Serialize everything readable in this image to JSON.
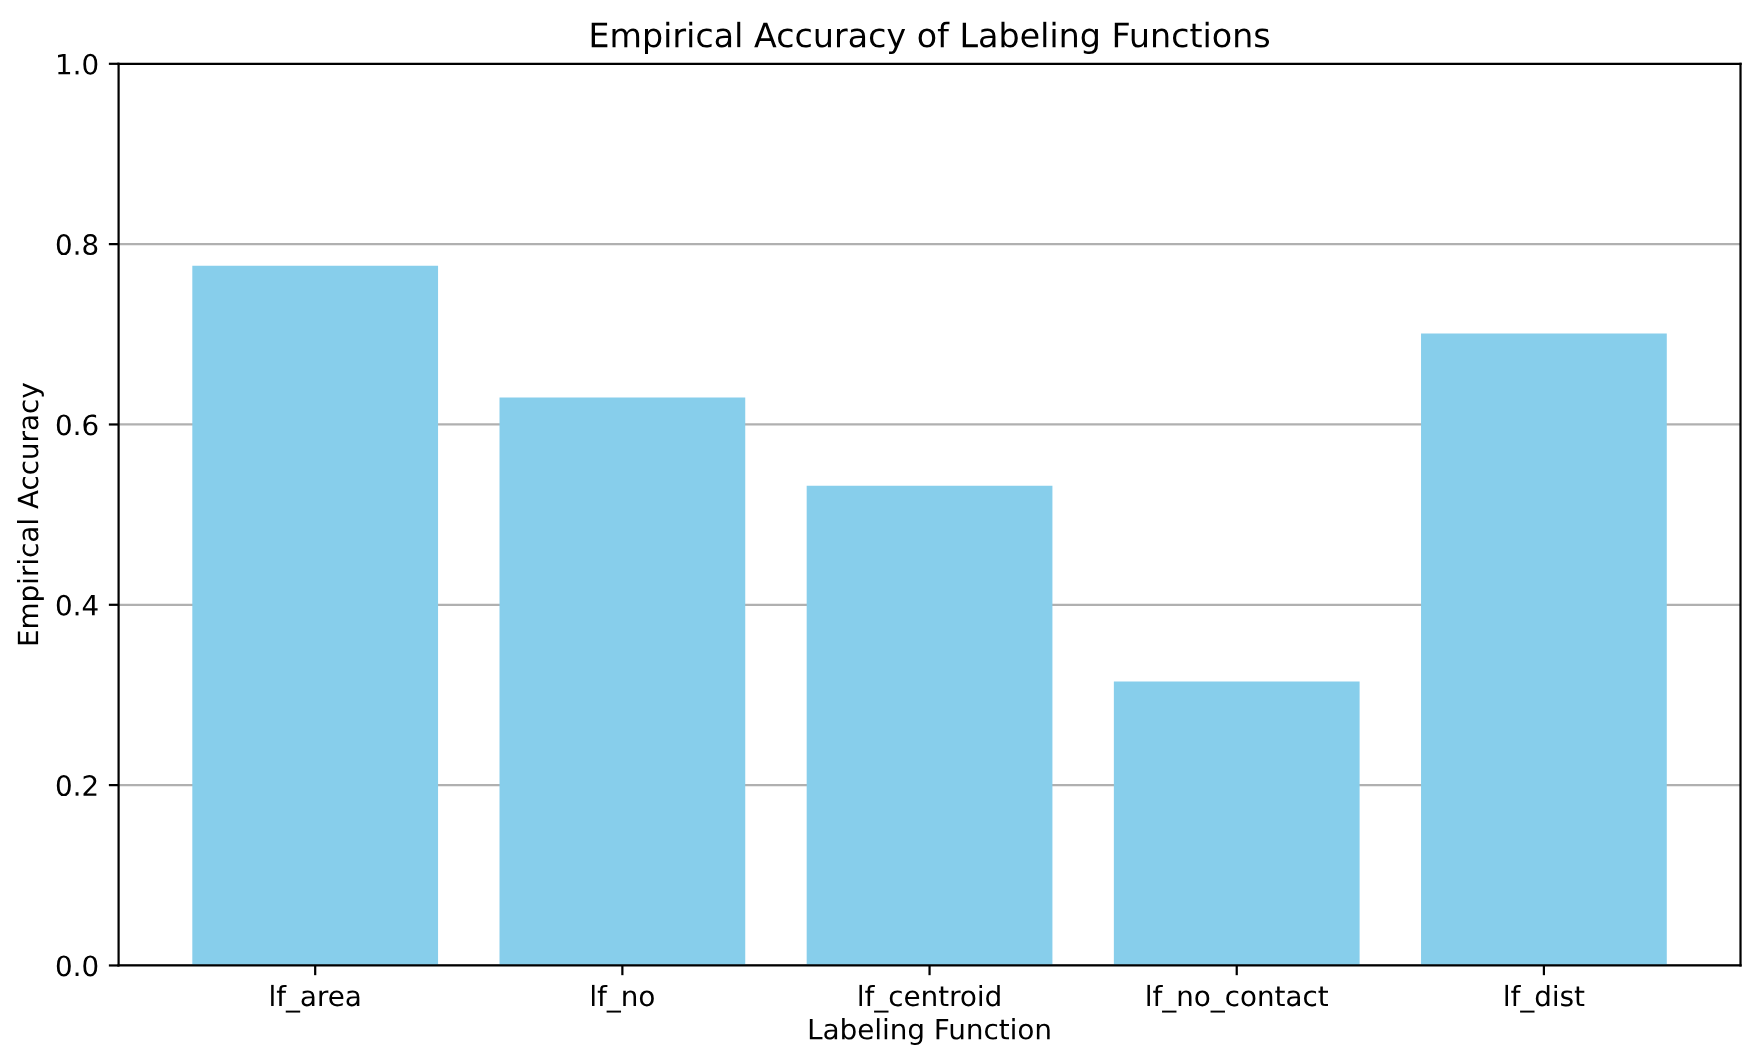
{
  "chart_data": {
    "type": "bar",
    "title": "Empirical Accuracy of Labeling Functions",
    "xlabel": "Labeling Function",
    "ylabel": "Empirical Accuracy",
    "categories": [
      "lf_area",
      "lf_no",
      "lf_centroid",
      "lf_no_contact",
      "lf_dist"
    ],
    "values": [
      0.776,
      0.63,
      0.532,
      0.315,
      0.701
    ],
    "color": "#87ceeb",
    "ylim": [
      0,
      1
    ],
    "yticks": [
      {
        "value": 0,
        "label": "0.0"
      },
      0.2,
      0.4,
      0.6,
      0.8,
      {
        "value": 1,
        "label": "1.0"
      }
    ],
    "grid": "y"
  }
}
